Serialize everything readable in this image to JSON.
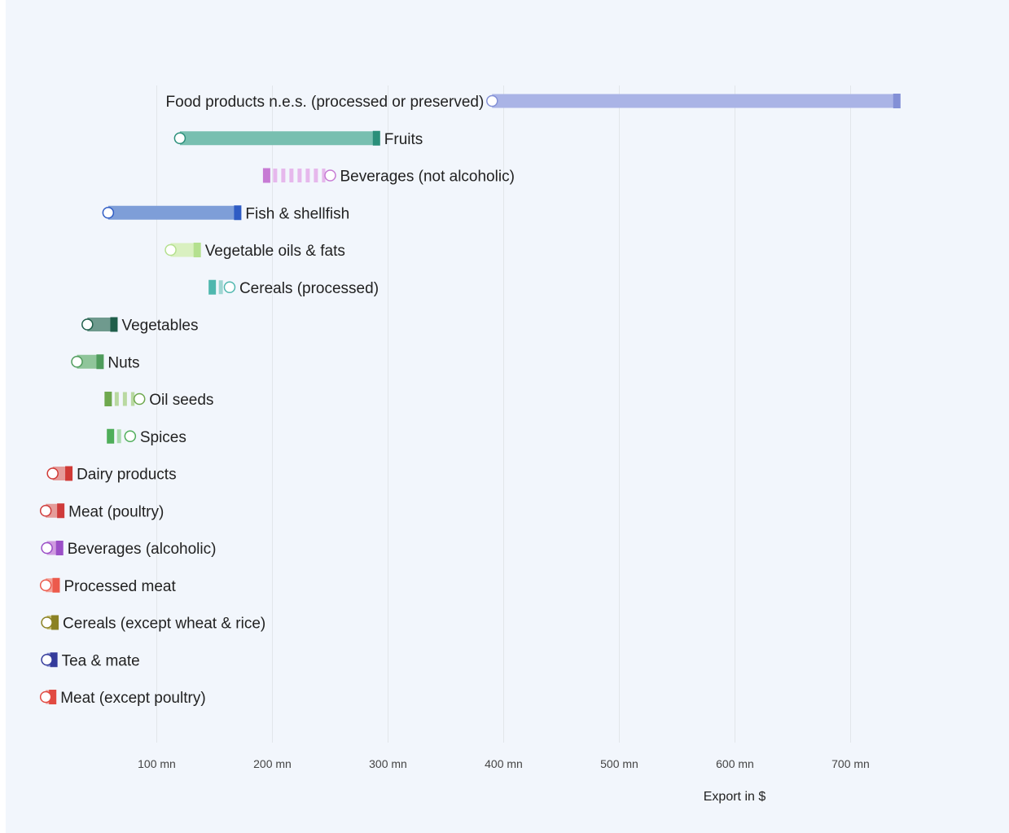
{
  "chart_data": {
    "type": "dumbbell",
    "title": "",
    "xlabel": "Export in $",
    "ylabel": "",
    "xlim": [
      0,
      740
    ],
    "grid": true,
    "x_ticks": [
      {
        "value": 100,
        "label": "100 mn"
      },
      {
        "value": 200,
        "label": "200 mn"
      },
      {
        "value": 300,
        "label": "300 mn"
      },
      {
        "value": 400,
        "label": "400 mn"
      },
      {
        "value": 500,
        "label": "500 mn"
      },
      {
        "value": 600,
        "label": "600 mn"
      },
      {
        "value": 700,
        "label": "700 mn"
      }
    ],
    "rows": [
      {
        "label": "Food products n.e.s. (processed or preserved)",
        "start": 390,
        "end": 740,
        "color": "#aab4e6",
        "accent": "#8390d6"
      },
      {
        "label": "Fruits",
        "start": 120,
        "end": 290,
        "color": "#78bfb0",
        "accent": "#2a8f7a"
      },
      {
        "label": "Beverages (not alcoholic)",
        "start": 250,
        "end": 195,
        "color": "#e6b8ec",
        "accent": "#c77bd4"
      },
      {
        "label": "Fish & shellfish",
        "start": 58,
        "end": 170,
        "color": "#7e9ed8",
        "accent": "#2f5cc4"
      },
      {
        "label": "Vegetable oils & fats",
        "start": 112,
        "end": 135,
        "color": "#d9f0c0",
        "accent": "#b4e08f"
      },
      {
        "label": "Cereals (processed)",
        "start": 163,
        "end": 148,
        "color": "#9ed6d2",
        "accent": "#4fb7ae"
      },
      {
        "label": "Vegetables",
        "start": 40,
        "end": 63,
        "color": "#6f9a8e",
        "accent": "#1f5e4a"
      },
      {
        "label": "Nuts",
        "start": 31,
        "end": 51,
        "color": "#8fc59a",
        "accent": "#4f9c5c"
      },
      {
        "label": "Oil seeds",
        "start": 85,
        "end": 58,
        "color": "#b9d9a1",
        "accent": "#6ea84e"
      },
      {
        "label": "Spices",
        "start": 77,
        "end": 60,
        "color": "#a9dbad",
        "accent": "#4fae5a"
      },
      {
        "label": "Dairy products",
        "start": 10,
        "end": 24,
        "color": "#e59c9a",
        "accent": "#d03a36"
      },
      {
        "label": "Meat (poultry)",
        "start": 4,
        "end": 17,
        "color": "#e59c9a",
        "accent": "#cf3b3b"
      },
      {
        "label": "Beverages (alcoholic)",
        "start": 5,
        "end": 16,
        "color": "#cf9be0",
        "accent": "#9b4fc7"
      },
      {
        "label": "Processed meat",
        "start": 4,
        "end": 13,
        "color": "#f3a39a",
        "accent": "#ec5a4c"
      },
      {
        "label": "Cereals (except wheat & rice)",
        "start": 5,
        "end": 12,
        "color": "#c8c07a",
        "accent": "#8b8224"
      },
      {
        "label": "Tea & mate",
        "start": 5,
        "end": 11,
        "color": "#8e95d3",
        "accent": "#343b9b"
      },
      {
        "label": "Meat (except poultry)",
        "start": 4,
        "end": 10,
        "color": "#f09d98",
        "accent": "#e14a42"
      }
    ]
  }
}
